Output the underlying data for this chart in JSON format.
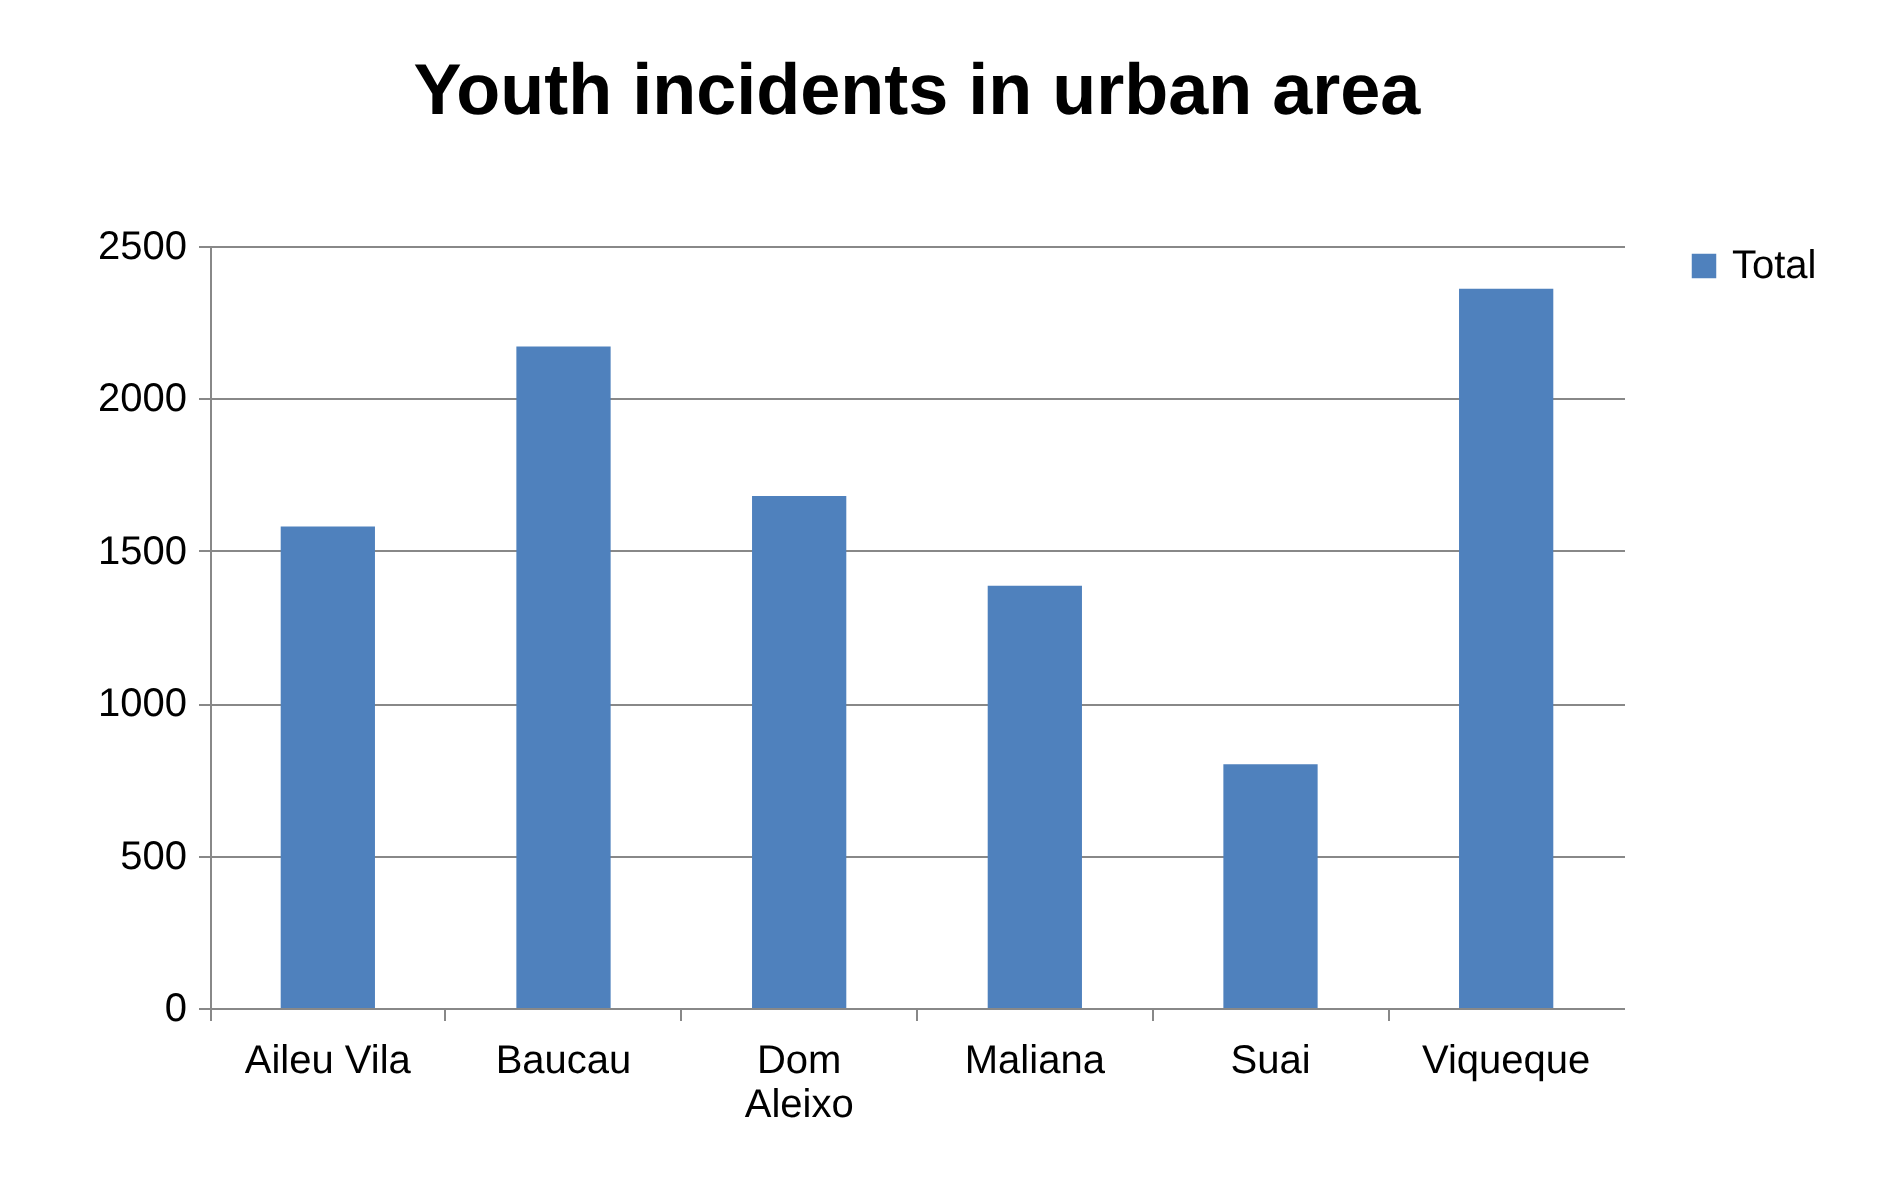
{
  "chart_data": {
    "type": "bar",
    "title": "Youth incidents in urban area",
    "categories": [
      "Aileu Vila",
      "Baucau",
      "Dom Aleixo",
      "Maliana",
      "Suai",
      "Viqueque"
    ],
    "series": [
      {
        "name": "Total",
        "color": "#4f81bd",
        "values": [
          1580,
          2170,
          1680,
          1385,
          800,
          2360
        ]
      }
    ],
    "ylim": [
      0,
      2500
    ],
    "yticks": [
      0,
      500,
      1000,
      1500,
      2000,
      2500
    ],
    "grid": "y",
    "legend": "right"
  }
}
